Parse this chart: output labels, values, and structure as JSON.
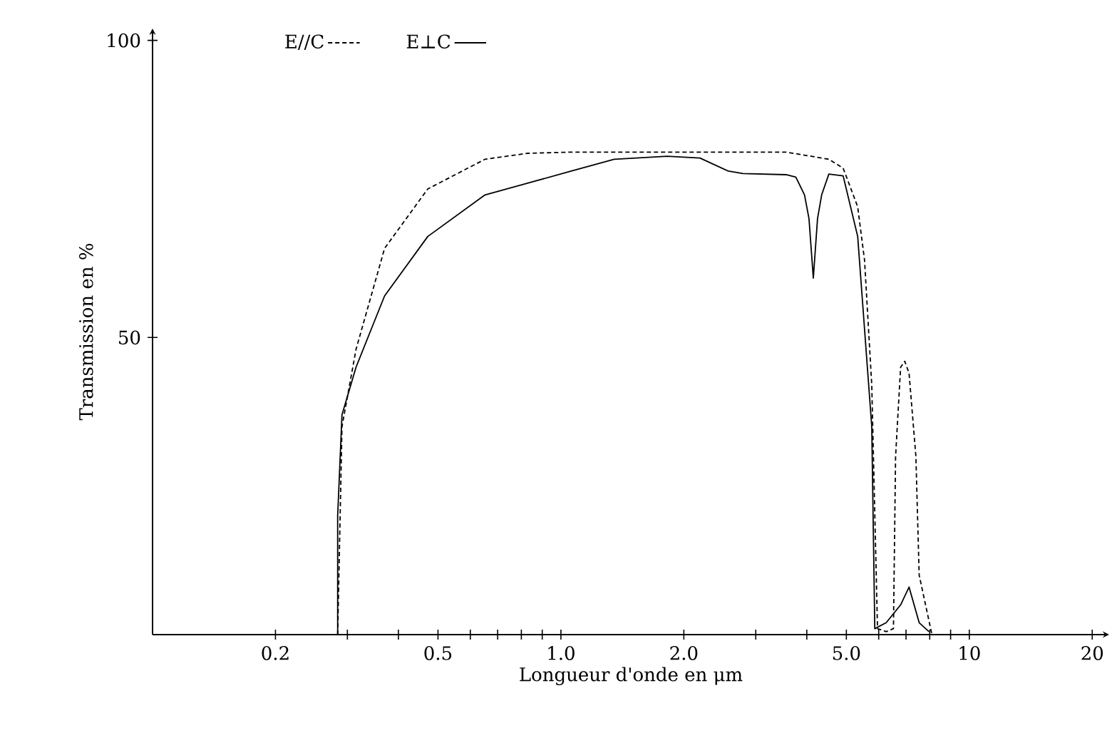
{
  "chart_data": {
    "type": "line",
    "xlabel": "Longueur d'onde en μm",
    "ylabel": "Transmission en %",
    "log": "x",
    "legend": "top",
    "xlim": [
      0.1,
      22
    ],
    "ylim": [
      0,
      102
    ],
    "xticks": [
      0.2,
      {
        "value": 0.3,
        "label": null
      },
      {
        "value": 0.4,
        "label": null
      },
      0.5,
      {
        "value": 0.6,
        "label": null
      },
      {
        "value": 0.7,
        "label": null
      },
      {
        "value": 0.8,
        "label": null
      },
      {
        "value": 0.9,
        "label": null
      },
      {
        "value": 1,
        "label": "1.0"
      },
      {
        "value": 2,
        "label": "2.0"
      },
      {
        "value": 3,
        "label": null
      },
      {
        "value": 4,
        "label": null
      },
      {
        "value": 5,
        "label": "5.0"
      },
      {
        "value": 6,
        "label": null
      },
      {
        "value": 7,
        "label": null
      },
      {
        "value": 8,
        "label": null
      },
      {
        "value": 9,
        "label": null
      },
      10,
      20
    ],
    "yticks": [
      50,
      100
    ],
    "series": [
      {
        "name": "E//C",
        "color": "#000000",
        "line_style": "dashed",
        "x": [
          0.284,
          0.291,
          0.315,
          0.37,
          0.472,
          0.652,
          0.83,
          1.06,
          2.19,
          3.56,
          4.53,
          4.91,
          5.33,
          5.54,
          5.77,
          5.96,
          6.26,
          6.52,
          6.6,
          6.79,
          6.95,
          7.12,
          7.4,
          7.54,
          8.1
        ],
        "values": [
          0,
          35,
          48,
          65,
          75,
          80,
          81,
          81.2,
          81.2,
          81.2,
          80,
          78.5,
          72,
          63,
          42,
          1,
          0.5,
          1,
          30,
          45,
          46,
          44,
          30,
          10,
          0
        ]
      },
      {
        "name": "E⊥C",
        "color": "#000000",
        "line_style": "solid",
        "x": [
          0.284,
          0.284,
          0.291,
          0.315,
          0.37,
          0.472,
          0.652,
          1.06,
          1.35,
          1.82,
          2.19,
          2.57,
          2.79,
          3.56,
          3.76,
          3.95,
          4.05,
          4.15,
          4.25,
          4.35,
          4.53,
          4.91,
          5.33,
          5.77,
          5.87,
          6.26,
          6.79,
          7.12,
          7.54,
          7.97
        ],
        "values": [
          0,
          20,
          37,
          45,
          57,
          67,
          74,
          78,
          80,
          80.5,
          80.2,
          78,
          77.6,
          77.4,
          77,
          74,
          70,
          60,
          70,
          74,
          77.5,
          77.2,
          67,
          35,
          1,
          2,
          5,
          8,
          2,
          0.5
        ]
      }
    ]
  }
}
